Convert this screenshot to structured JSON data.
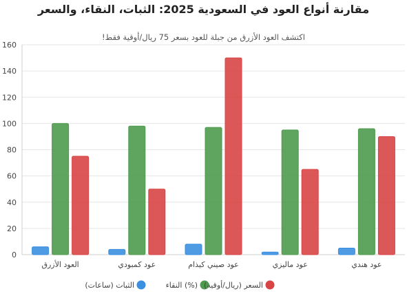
{
  "chart_data": {
    "type": "bar",
    "title": "مقارنة أنواع العود في السعودية 2025: الثبات، النقاء، والسعر",
    "subtitle": "!اكتشف العود الأزرق من جبلة للعود بسعر 75 ريال/أوقية فقط",
    "categories": [
      "العود الأزرق",
      "عود كمبودي",
      "عود صيني كيذام",
      "عود ماليزي",
      "عود هندي"
    ],
    "series": [
      {
        "name": "الثبات (ساعات)",
        "color": "#3b8fe0",
        "values": [
          6,
          4,
          8,
          2,
          5
        ]
      },
      {
        "name": "النقاء (%)",
        "color": "#4e9a4e",
        "values": [
          100,
          98,
          97,
          95,
          96
        ]
      },
      {
        "name": "السعر (ريال/أوقية)",
        "color": "#d84545",
        "values": [
          75,
          50,
          150,
          65,
          90
        ]
      }
    ],
    "ylim": [
      0,
      160
    ],
    "yticks": [
      0,
      20,
      40,
      60,
      80,
      100,
      120,
      140,
      160
    ],
    "grid": true,
    "legend_position": "bottom"
  }
}
